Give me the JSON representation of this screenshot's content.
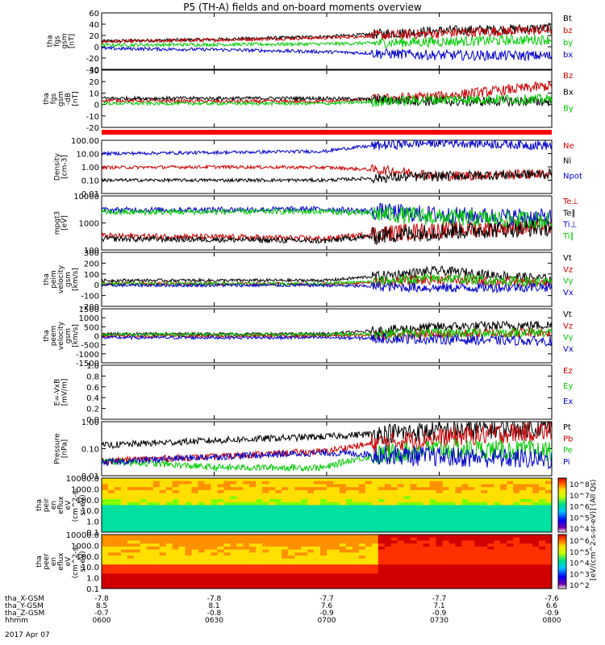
{
  "title": "P5 (TH-A) fields and on-board moments overview",
  "date_label": "2017 Apr 07",
  "time_axis": {
    "row_labels": [
      "tha_X-GSM",
      "tha_Y-GSM",
      "tha_Z-GSM",
      "hhmm"
    ],
    "columns": [
      [
        "-7.8",
        "8.5",
        "-0.7",
        "0600"
      ],
      [
        "-7.8",
        "8.1",
        "-0.8",
        "0630"
      ],
      [
        "-7.7",
        "7.6",
        "-0.9",
        "0700"
      ],
      [
        "-7.7",
        "7.1",
        "-0.9",
        "0730"
      ],
      [
        "-7.6",
        "6.6",
        "-0.9",
        "0800"
      ]
    ]
  },
  "chart_data": [
    {
      "id": "fgs_gsm",
      "type": "line",
      "ylabel": [
        "tha",
        "fgs",
        "gsm",
        "[nT]"
      ],
      "ylim": [
        -40,
        60
      ],
      "yscale": "linear",
      "yticks": [
        "60",
        "40",
        "20",
        "0",
        "-20",
        "-40"
      ],
      "x": [
        "0600",
        "0630",
        "0700",
        "0730",
        "0800"
      ],
      "series": [
        {
          "name": "Bt",
          "color": "#000000",
          "values": [
            10,
            13,
            18,
            28,
            33
          ]
        },
        {
          "name": "bz",
          "color": "#cc0000",
          "values": [
            9,
            12,
            16,
            24,
            30
          ]
        },
        {
          "name": "by",
          "color": "#00cc00",
          "values": [
            3,
            4,
            5,
            9,
            13
          ]
        },
        {
          "name": "bx",
          "color": "#0000cc",
          "values": [
            -3,
            -5,
            -9,
            -15,
            -16
          ]
        }
      ]
    },
    {
      "id": "fgs_mfa",
      "type": "line",
      "ylabel": [
        "tha",
        "fgs",
        "gsm",
        "-dB",
        "[nT]"
      ],
      "ylim": [
        -25,
        30
      ],
      "yscale": "linear",
      "yticks": [
        "30",
        "20",
        "10",
        "0",
        "-10",
        "-20"
      ],
      "x": [
        "0600",
        "0630",
        "0700",
        "0730",
        "0800"
      ],
      "series": [
        {
          "name": "Bz",
          "color": "#cc0000",
          "values": [
            1,
            0,
            0,
            5,
            15
          ]
        },
        {
          "name": "Bx",
          "color": "#000000",
          "values": [
            3,
            3,
            3,
            0,
            0
          ]
        },
        {
          "name": "By",
          "color": "#00cc00",
          "values": [
            -2,
            -2,
            -2,
            2,
            2
          ]
        }
      ]
    },
    {
      "id": "density",
      "type": "line",
      "ylabel": [
        "Density",
        "[cm-3]"
      ],
      "ylim": [
        0.01,
        100
      ],
      "yscale": "log",
      "yticks": [
        "100.00",
        "10.00",
        "1.00",
        "0.10",
        "0.01"
      ],
      "x": [
        "0600",
        "0630",
        "0700",
        "0730",
        "0800"
      ],
      "series": [
        {
          "name": "Ne",
          "color": "#cc0000",
          "values": [
            0.9,
            1.0,
            0.9,
            0.2,
            0.3
          ]
        },
        {
          "name": "Ni",
          "color": "#000000",
          "values": [
            0.1,
            0.1,
            0.1,
            0.2,
            0.3
          ]
        },
        {
          "name": "Npot",
          "color": "#0000cc",
          "values": [
            10,
            12,
            15,
            70,
            40
          ]
        }
      ]
    },
    {
      "id": "temperature",
      "type": "line",
      "ylabel": [
        "mpgt3",
        "[eV]"
      ],
      "ylim": [
        50,
        10000
      ],
      "yscale": "log",
      "yticks": [
        "10000",
        "1000",
        "100"
      ],
      "x": [
        "0600",
        "0630",
        "0700",
        "0730",
        "0800"
      ],
      "series": [
        {
          "name": "Te⊥",
          "color": "#cc0000",
          "values": [
            200,
            180,
            150,
            350,
            500
          ]
        },
        {
          "name": "Te∥",
          "color": "#000000",
          "values": [
            150,
            140,
            120,
            300,
            450
          ]
        },
        {
          "name": "Ti⊥",
          "color": "#0000cc",
          "values": [
            2500,
            2600,
            2700,
            1500,
            1200
          ]
        },
        {
          "name": "Ti∥",
          "color": "#00cc00",
          "values": [
            2000,
            2100,
            2200,
            1200,
            900
          ]
        }
      ]
    },
    {
      "id": "peim_velocity",
      "type": "line",
      "ylabel": [
        "tha",
        "peim",
        "velocity",
        "gsm",
        "[km/s]"
      ],
      "ylim": [
        -200,
        300
      ],
      "yscale": "linear",
      "yticks": [
        "300",
        "200",
        "100",
        "0",
        "-100",
        "-200"
      ],
      "x": [
        "0600",
        "0630",
        "0700",
        "0730",
        "0800"
      ],
      "series": [
        {
          "name": "Vt",
          "color": "#000000",
          "values": [
            40,
            40,
            40,
            130,
            50
          ]
        },
        {
          "name": "Vz",
          "color": "#cc0000",
          "values": [
            10,
            10,
            5,
            50,
            10
          ]
        },
        {
          "name": "Vy",
          "color": "#00cc00",
          "values": [
            10,
            10,
            10,
            60,
            20
          ]
        },
        {
          "name": "Vx",
          "color": "#0000cc",
          "values": [
            -5,
            -5,
            -5,
            -30,
            -20
          ]
        }
      ]
    },
    {
      "id": "peem_velocity",
      "type": "line",
      "ylabel": [
        "tha",
        "peem",
        "velocity",
        "gsm",
        "[km/s]"
      ],
      "ylim": [
        -1500,
        1500
      ],
      "yscale": "linear",
      "yticks": [
        "1500",
        "1000",
        "500",
        "0",
        "-500",
        "-1000",
        "-1500"
      ],
      "x": [
        "0600",
        "0630",
        "0700",
        "0730",
        "0800"
      ],
      "series": [
        {
          "name": "Vt",
          "color": "#000000",
          "values": [
            100,
            100,
            100,
            500,
            600
          ]
        },
        {
          "name": "Vz",
          "color": "#cc0000",
          "values": [
            0,
            0,
            0,
            100,
            200
          ]
        },
        {
          "name": "Vy",
          "color": "#00cc00",
          "values": [
            80,
            80,
            80,
            150,
            200
          ]
        },
        {
          "name": "Vx",
          "color": "#0000cc",
          "values": [
            -100,
            -100,
            -100,
            -200,
            -300
          ]
        }
      ]
    },
    {
      "id": "efield",
      "type": "line",
      "ylabel": [
        "E=-VxB",
        "[mV/m]"
      ],
      "ylim": [
        0,
        1
      ],
      "yscale": "linear",
      "yticks": [
        "1.0",
        "0.8",
        "0.6",
        "0.4",
        "0.2",
        "0.0"
      ],
      "x": [],
      "series": [
        {
          "name": "Ez",
          "color": "#cc0000",
          "values": []
        },
        {
          "name": "Ey",
          "color": "#00cc00",
          "values": []
        },
        {
          "name": "Ex",
          "color": "#0000cc",
          "values": []
        }
      ]
    },
    {
      "id": "pressure",
      "type": "line",
      "ylabel": [
        "Pressure",
        "[nPa]"
      ],
      "ylim": [
        0.01,
        1.0
      ],
      "yscale": "log",
      "yticks": [
        "1.00",
        "0.10",
        "0.01"
      ],
      "x": [
        "0600",
        "0630",
        "0700",
        "0730",
        "0800"
      ],
      "series": [
        {
          "name": "Pt",
          "color": "#000000",
          "values": [
            0.13,
            0.2,
            0.28,
            0.45,
            0.65
          ]
        },
        {
          "name": "Pb",
          "color": "#cc0000",
          "values": [
            0.035,
            0.05,
            0.08,
            0.25,
            0.45
          ]
        },
        {
          "name": "Pe",
          "color": "#00cc00",
          "values": [
            0.035,
            0.02,
            0.02,
            0.1,
            0.08
          ]
        },
        {
          "name": "Pi",
          "color": "#0000cc",
          "values": [
            0.03,
            0.05,
            0.07,
            0.05,
            0.04
          ]
        }
      ]
    },
    {
      "id": "peir_spec",
      "type": "heatmap",
      "ylabel": [
        "tha",
        "peir",
        "en",
        "eflux",
        "eV",
        "(cm^2-s-",
        "sr-eV)"
      ],
      "ylim": [
        0.1,
        10000
      ],
      "yscale": "log",
      "yticks": [
        "10000.0",
        "1000.0",
        "100.0",
        "10.0",
        "1.0",
        "0.1"
      ],
      "colorbar": {
        "label": "[eV/(cm^2-s-sr-eV)] (All Qs)",
        "ticks": [
          "10^8",
          "10^7",
          "10^6",
          "10^5",
          "10^4"
        ]
      }
    },
    {
      "id": "peer_spec",
      "type": "heatmap",
      "ylabel": [
        "tha",
        "peer",
        "en",
        "eflux",
        "eV",
        "(cm^2-s-",
        "sr-eV)"
      ],
      "ylim": [
        0.1,
        10000
      ],
      "yscale": "log",
      "yticks": [
        "10000.0",
        "1000.0",
        "100.0",
        "10.0",
        "1.0",
        "0.1"
      ],
      "colorbar": {
        "label": "[eV/(cm^2-s-sr-eV)]",
        "ticks": [
          "10^6",
          "10^5",
          "10^4",
          "10^3",
          "10^2"
        ]
      }
    }
  ]
}
